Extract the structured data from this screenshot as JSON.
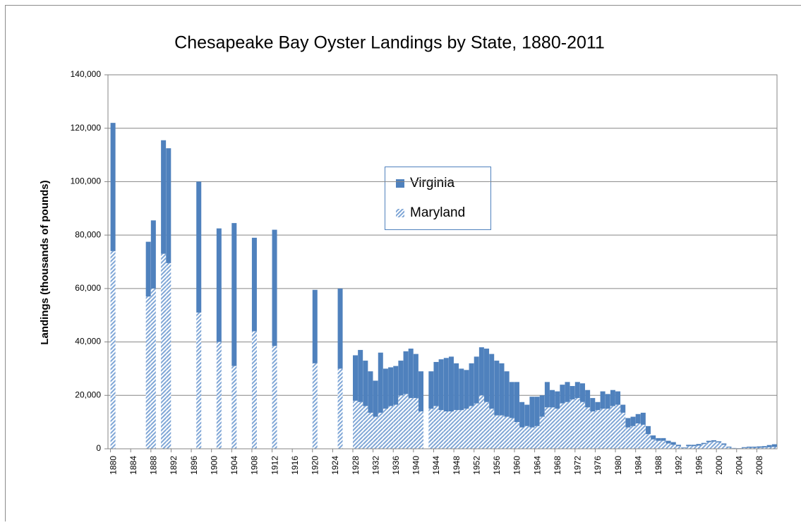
{
  "chart_data": {
    "type": "stacked_bar",
    "title": "Chesapeake Bay Oyster Landings by State, 1880-2011",
    "y_label": "Landings (thousands of pounds)",
    "x": [
      1880,
      1887,
      1888,
      1890,
      1891,
      1897,
      1901,
      1904,
      1908,
      1912,
      1920,
      1925,
      1928,
      1929,
      1930,
      1931,
      1932,
      1933,
      1934,
      1935,
      1936,
      1937,
      1938,
      1939,
      1940,
      1941,
      1943,
      1944,
      1945,
      1946,
      1947,
      1948,
      1949,
      1950,
      1951,
      1952,
      1953,
      1954,
      1955,
      1956,
      1957,
      1958,
      1959,
      1960,
      1961,
      1962,
      1963,
      1964,
      1965,
      1966,
      1967,
      1968,
      1969,
      1970,
      1971,
      1972,
      1973,
      1974,
      1975,
      1976,
      1977,
      1978,
      1979,
      1980,
      1981,
      1982,
      1983,
      1984,
      1985,
      1986,
      1987,
      1988,
      1989,
      1990,
      1991,
      1992,
      1993,
      1994,
      1995,
      1996,
      1997,
      1998,
      1999,
      2000,
      2001,
      2002,
      2003,
      2004,
      2005,
      2006,
      2007,
      2008,
      2009,
      2010,
      2011
    ],
    "series": [
      {
        "name": "Virginia",
        "color": "#4f81bd",
        "values": [
          48000,
          20500,
          25500,
          42500,
          43000,
          49000,
          42500,
          53500,
          35000,
          43500,
          27500,
          30000,
          17000,
          19500,
          17000,
          15500,
          13500,
          22500,
          15000,
          14500,
          14500,
          13000,
          16000,
          18500,
          16500,
          15000,
          14000,
          16500,
          19000,
          20000,
          20500,
          17500,
          15500,
          14500,
          16000,
          17500,
          18000,
          20000,
          20500,
          20500,
          19500,
          17000,
          13500,
          15000,
          9500,
          8000,
          11500,
          11000,
          8000,
          9500,
          6500,
          6500,
          7000,
          7500,
          5000,
          6000,
          7000,
          6500,
          5000,
          3000,
          6500,
          5500,
          6000,
          5000,
          3000,
          3500,
          3500,
          3500,
          4500,
          3000,
          1500,
          1000,
          1000,
          1000,
          1000,
          500,
          200,
          500,
          500,
          600,
          400,
          500,
          500,
          400,
          500,
          300,
          100,
          100,
          300,
          400,
          400,
          500,
          500,
          800,
          1000
        ]
      },
      {
        "name": "Maryland",
        "color": "#4f81bd",
        "hatch": true,
        "values": [
          74000,
          57000,
          60000,
          73000,
          69500,
          51000,
          40000,
          31000,
          44000,
          38500,
          32000,
          30000,
          18000,
          17500,
          16000,
          13500,
          12000,
          13500,
          15000,
          16000,
          16500,
          20000,
          20500,
          19000,
          19000,
          14000,
          15000,
          16000,
          14500,
          14000,
          14000,
          14500,
          14500,
          15000,
          16000,
          17000,
          20000,
          17500,
          15000,
          12500,
          12500,
          12000,
          11500,
          10000,
          8000,
          8500,
          8000,
          8500,
          12000,
          15500,
          15500,
          15000,
          17000,
          17500,
          18500,
          19000,
          17500,
          15500,
          14000,
          14500,
          15000,
          15000,
          16000,
          16500,
          13500,
          8000,
          8500,
          9500,
          9000,
          5500,
          3500,
          3000,
          3000,
          2000,
          1500,
          1000,
          300,
          1000,
          1000,
          1200,
          1800,
          2500,
          2700,
          2400,
          1500,
          500,
          200,
          100,
          300,
          400,
          400,
          400,
          500,
          600,
          700
        ]
      }
    ],
    "xlim": [
      1879,
      2011.5
    ],
    "xticks": [
      1880,
      1884,
      1888,
      1892,
      1896,
      1900,
      1904,
      1908,
      1912,
      1916,
      1920,
      1924,
      1928,
      1932,
      1936,
      1940,
      1944,
      1948,
      1952,
      1956,
      1960,
      1964,
      1968,
      1972,
      1976,
      1980,
      1984,
      1988,
      1992,
      1996,
      2000,
      2004,
      2008
    ],
    "ylim": [
      0,
      140000
    ],
    "yticks": [
      0,
      {
        "value": 20000,
        "label": "20,000"
      },
      {
        "value": 40000,
        "label": "40,000"
      },
      {
        "value": 60000,
        "label": "60,000"
      },
      {
        "value": 80000,
        "label": "80,000"
      },
      {
        "value": 100000,
        "label": "100,000"
      },
      {
        "value": 120000,
        "label": "120,000"
      },
      {
        "value": 140000,
        "label": "140,000"
      }
    ],
    "grid": true
  }
}
